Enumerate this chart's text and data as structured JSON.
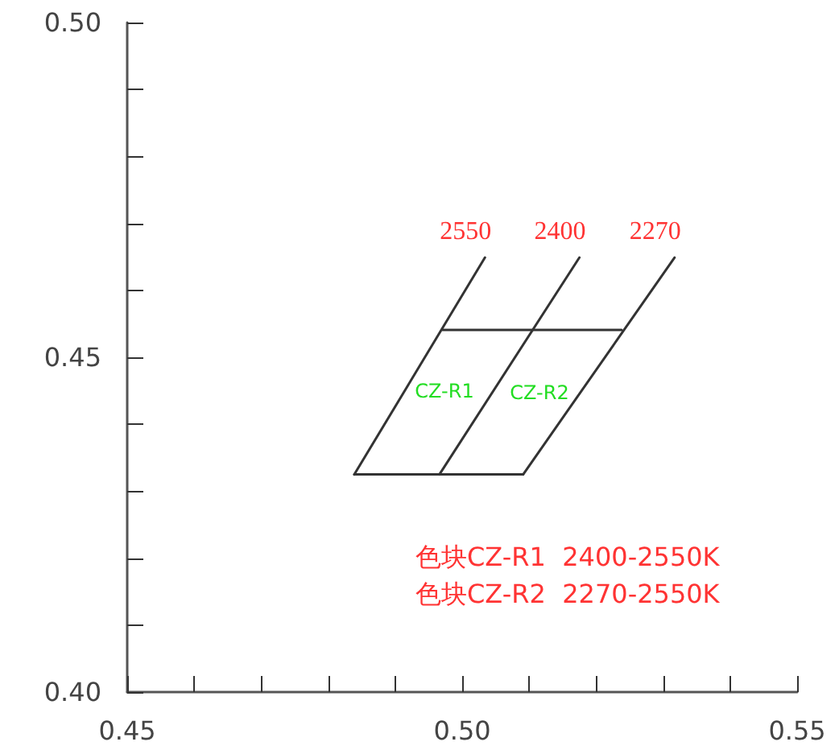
{
  "chart_data": {
    "type": "line",
    "series": [
      {
        "name": "2550",
        "color": "#333333",
        "x": [
          0.4839,
          0.5034
        ],
        "values": [
          0.4325,
          0.4649
        ]
      },
      {
        "name": "2400",
        "color": "#333333",
        "x": [
          0.4966,
          0.5175
        ],
        "values": [
          0.4325,
          0.4649
        ]
      },
      {
        "name": "2270",
        "color": "#333333",
        "x": [
          0.5091,
          0.5317
        ],
        "values": [
          0.4325,
          0.4649
        ]
      },
      {
        "color": "#333333",
        "x": [
          0.4971,
          0.5238
        ],
        "values": [
          0.4541,
          0.4541
        ]
      },
      {
        "color": "#333333",
        "x": [
          0.4839,
          0.5091
        ],
        "values": [
          0.4325,
          0.4325
        ]
      }
    ],
    "xlim": [
      0.45,
      0.55
    ],
    "xticks": [
      0.45,
      {
        "value": 0.46,
        "label": null
      },
      {
        "value": 0.47,
        "label": null
      },
      {
        "value": 0.48,
        "label": null
      },
      {
        "value": 0.49,
        "label": null
      },
      "0.50",
      {
        "value": 0.51,
        "label": null
      },
      {
        "value": 0.52,
        "label": null
      },
      {
        "value": 0.53,
        "label": null
      },
      {
        "value": 0.54,
        "label": null
      },
      0.55
    ],
    "ylim": [
      0.4,
      0.5
    ],
    "yticks": [
      {
        "value": 0.4,
        "label": "0.40"
      },
      {
        "value": 0.41,
        "label": null
      },
      {
        "value": 0.42,
        "label": null
      },
      {
        "value": 0.43,
        "label": null
      },
      {
        "value": 0.44,
        "label": null
      },
      0.45,
      {
        "value": 0.46,
        "label": null
      },
      {
        "value": 0.47,
        "label": null
      },
      {
        "value": 0.48,
        "label": null
      },
      {
        "value": 0.49,
        "label": null
      },
      {
        "value": 0.5,
        "label": "0.50"
      }
    ],
    "grid": false,
    "marker": "none",
    "line_style": "solid",
    "annotations": [
      "CZ-R1",
      "CZ-R2",
      "色块CZ-R1  2400-2550K",
      "色块CZ-R2  2270-2550K"
    ]
  }
}
